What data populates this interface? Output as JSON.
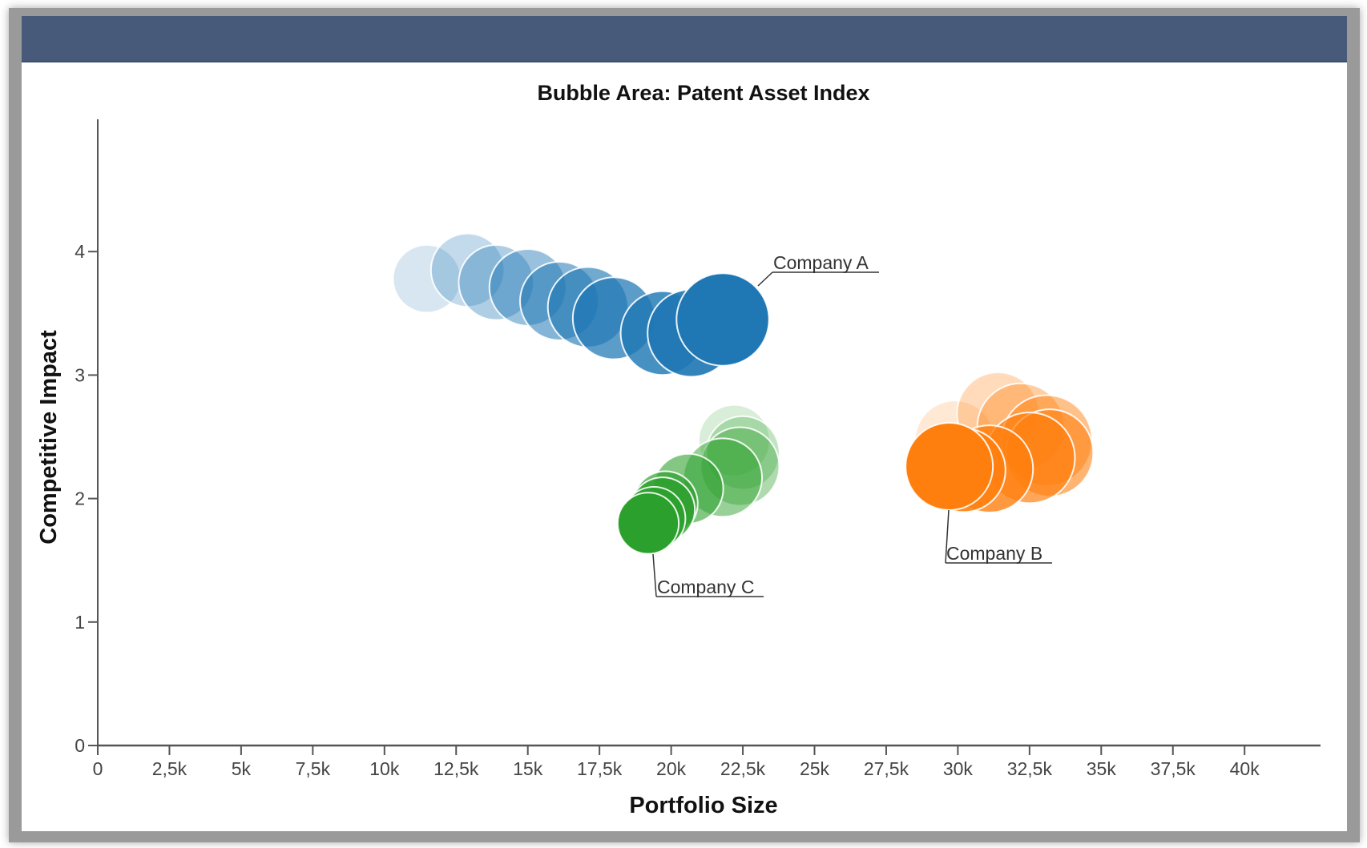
{
  "chart_data": {
    "type": "scatter",
    "subtype": "bubble",
    "title": "Bubble Area:  Patent Asset Index",
    "xlabel": "Portfolio Size",
    "ylabel": "Competitive Impact",
    "xlim": [
      0,
      42500
    ],
    "ylim": [
      0,
      5
    ],
    "x_ticks": [
      "0",
      "2,5k",
      "5k",
      "7,5k",
      "10k",
      "12,5k",
      "15k",
      "17,5k",
      "20k",
      "22,5k",
      "25k",
      "27,5k",
      "30k",
      "32,5k",
      "35k",
      "37,5k",
      "40k"
    ],
    "x_tick_values": [
      0,
      2500,
      5000,
      7500,
      10000,
      12500,
      15000,
      17500,
      20000,
      22500,
      25000,
      27500,
      30000,
      32500,
      35000,
      37500,
      40000
    ],
    "y_ticks": [
      "0",
      "1",
      "2",
      "3",
      "4"
    ],
    "y_tick_values": [
      0,
      1,
      2,
      3,
      4
    ],
    "grid": false,
    "size_label": "Patent Asset Index",
    "series": [
      {
        "name": "Company A",
        "color": "#1f77b4",
        "x": [
          11480,
          12900,
          13900,
          15000,
          16100,
          17100,
          18000,
          19700,
          20700,
          21800
        ],
        "y": [
          3.78,
          3.85,
          3.75,
          3.71,
          3.6,
          3.55,
          3.46,
          3.34,
          3.34,
          3.45
        ],
        "size": [
          1444,
          1764,
          1849,
          1936,
          2025,
          2116,
          2209,
          2304,
          2500,
          2809
        ]
      },
      {
        "name": "Company B",
        "color": "#ff7f0e",
        "x": [
          29900,
          31400,
          32200,
          33100,
          33200,
          32500,
          31100,
          30200,
          29700
        ],
        "y": [
          2.47,
          2.69,
          2.58,
          2.47,
          2.37,
          2.33,
          2.24,
          2.23,
          2.26
        ],
        "size": [
          2025,
          2209,
          2500,
          2704,
          2500,
          2704,
          2500,
          2304,
          2500
        ]
      },
      {
        "name": "Company C",
        "color": "#2ca02c",
        "x": [
          22200,
          22500,
          22400,
          21800,
          20600,
          19800,
          19700,
          19400,
          19200
        ],
        "y": [
          2.47,
          2.37,
          2.26,
          2.17,
          2.08,
          1.96,
          1.91,
          1.84,
          1.8
        ],
        "size": [
          1600,
          1764,
          2025,
          2025,
          1600,
          1369,
          1369,
          1296,
          1225
        ]
      }
    ],
    "annotations": [
      "Company A",
      "Company B",
      "Company C"
    ]
  }
}
